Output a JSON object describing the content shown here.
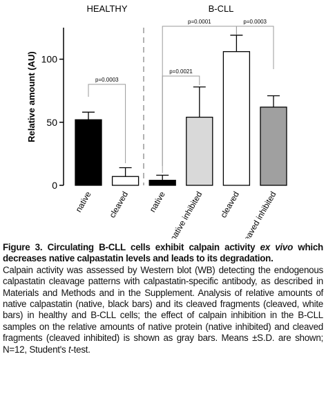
{
  "chart_data": {
    "type": "bar",
    "y_label": "Relative amount (AU)",
    "groups": [
      "HEALTHY",
      "B-CLL"
    ],
    "categories": [
      "native",
      "cleaved",
      "native",
      "native inhibited",
      "cleaved",
      "cleaved inhibited"
    ],
    "values": [
      52,
      7,
      4,
      54,
      106,
      62
    ],
    "errors": [
      6,
      7,
      4,
      24,
      13,
      9
    ],
    "colors": [
      "#000000",
      "#ffffff",
      "#000000",
      "#d9d9d9",
      "#ffffff",
      "#a0a0a0"
    ],
    "ylim": [
      0,
      125
    ],
    "yticks": [
      0,
      50,
      100
    ],
    "annotations": [
      "p=0.0003",
      "p=0.0021",
      "p=0.0001",
      "p=0.0003"
    ]
  },
  "caption": {
    "title": [
      "Figure 3. Circulating B-CLL cells exhibit calpain activity ",
      "ex vivo",
      " which decreases native calpastatin levels and leads to its degradation."
    ],
    "body": [
      "Calpain activity was assessed by Western blot (WB) detecting the endogenous calpastatin cleavage patterns with calpastatin-specific antibody, as described in Materials and Methods and in the Supplement. Analysis of relative amounts of native calpastatin (native, black bars) and its cleaved fragments (cleaved, white bars) in healthy and B-CLL cells; the effect of calpain inhibition in the B-CLL samples on the relative amounts of native protein (native inhibited) and cleaved fragments (cleaved inhibited) is shown as gray bars. Means ±S.D. are shown; N=12, Student's ",
      "t",
      "-test."
    ]
  }
}
